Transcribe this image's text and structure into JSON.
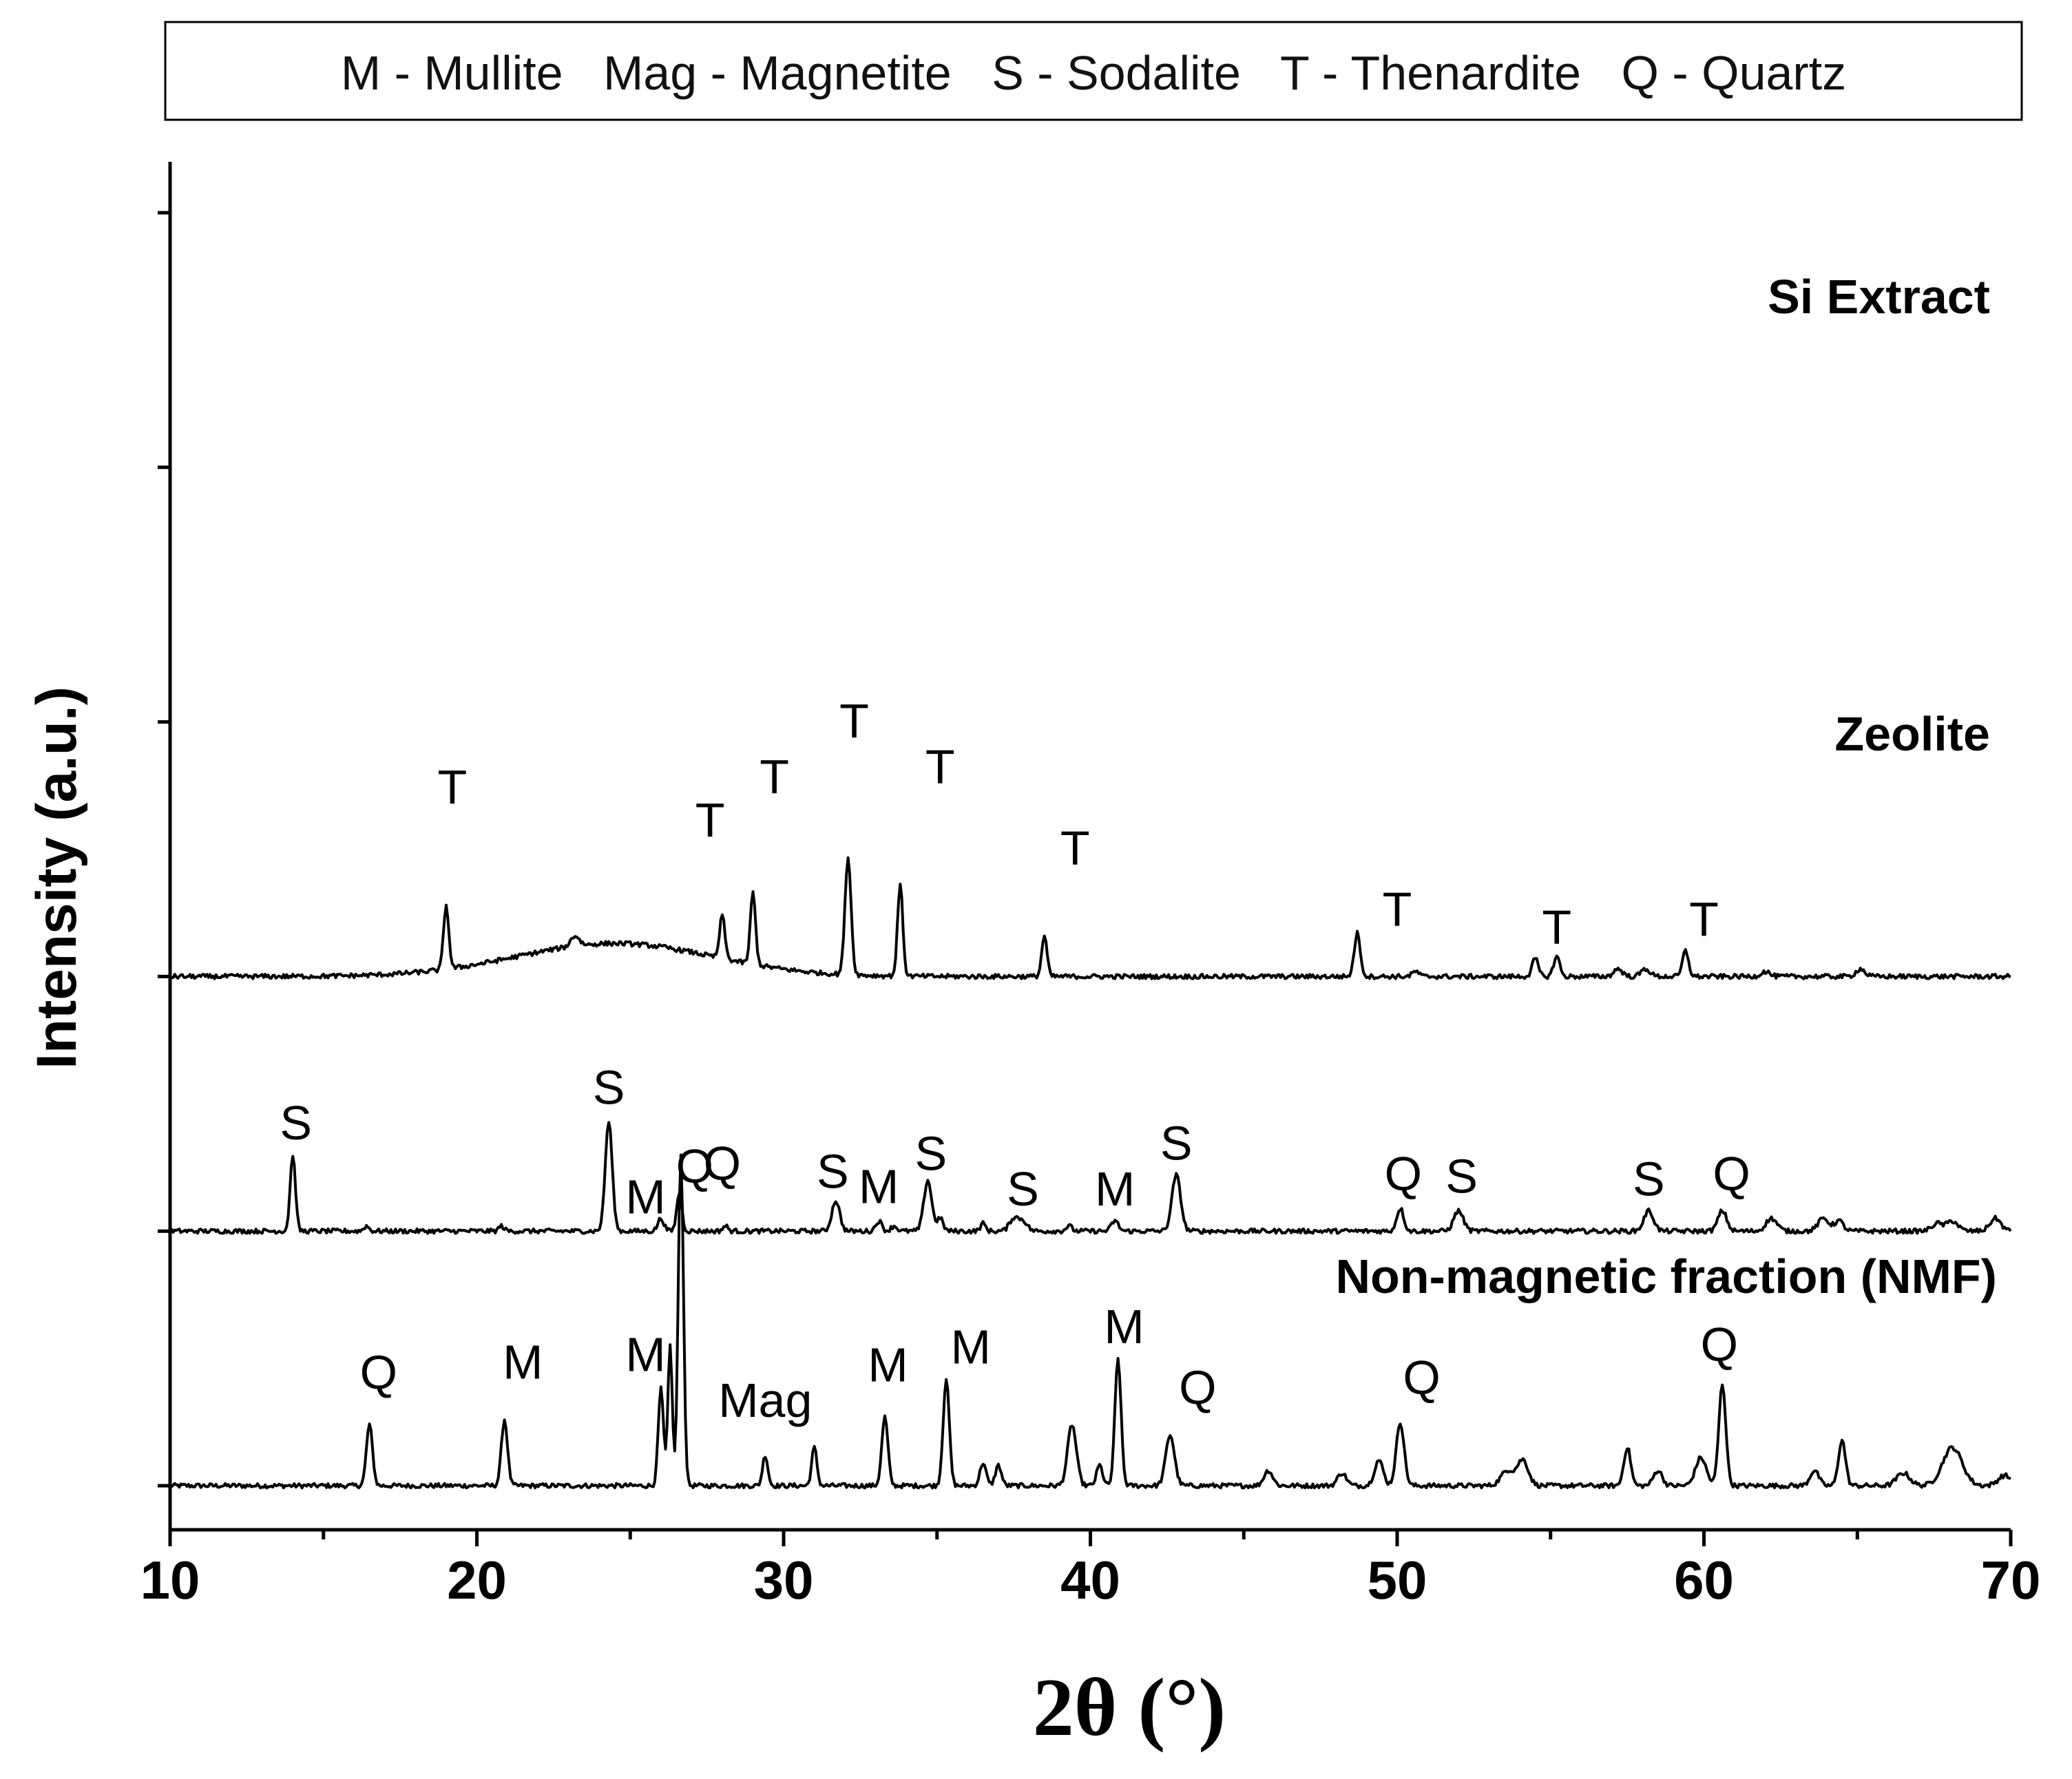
{
  "chart_data": {
    "type": "line",
    "title": "",
    "xlabel": "2θ (°)",
    "ylabel": "Intensity (a.u.)",
    "xlim": [
      10,
      70
    ],
    "ylim": [
      0,
      5.2
    ],
    "x_ticks": [
      10,
      20,
      30,
      40,
      50,
      60,
      70
    ],
    "legend": "M - Mullite   Mag - Magnetite   S - Sodalite   T - Thenardite   Q - Quartz",
    "series": [
      {
        "name": "Non-magnetic fraction (NMF)",
        "baseline": 0.0,
        "peaks": [
          [
            16.5,
            0.24,
            0.14
          ],
          [
            20.9,
            0.26,
            0.14
          ],
          [
            26.0,
            0.38,
            0.12
          ],
          [
            26.3,
            0.55,
            0.1
          ],
          [
            26.65,
            1.3,
            0.12
          ],
          [
            29.4,
            0.12,
            0.12
          ],
          [
            31.0,
            0.15,
            0.12
          ],
          [
            33.3,
            0.27,
            0.14
          ],
          [
            35.3,
            0.42,
            0.14
          ],
          [
            36.5,
            0.09,
            0.14
          ],
          [
            37.0,
            0.08,
            0.14
          ],
          [
            39.4,
            0.24,
            0.2
          ],
          [
            40.3,
            0.08,
            0.14
          ],
          [
            40.9,
            0.5,
            0.14
          ],
          [
            42.6,
            0.2,
            0.2
          ],
          [
            45.8,
            0.06,
            0.2
          ],
          [
            48.2,
            0.05,
            0.2
          ],
          [
            49.4,
            0.1,
            0.2
          ],
          [
            50.1,
            0.25,
            0.18
          ],
          [
            53.6,
            0.06,
            0.3
          ],
          [
            54.1,
            0.1,
            0.25
          ],
          [
            57.5,
            0.15,
            0.16
          ],
          [
            58.5,
            0.06,
            0.2
          ],
          [
            59.9,
            0.11,
            0.25
          ],
          [
            60.6,
            0.4,
            0.16
          ],
          [
            63.6,
            0.06,
            0.2
          ],
          [
            64.5,
            0.18,
            0.16
          ],
          [
            66.5,
            0.05,
            0.3
          ],
          [
            68.1,
            0.15,
            0.45
          ],
          [
            69.8,
            0.04,
            0.3
          ]
        ],
        "peak_labels": [
          {
            "text": "Q",
            "x": 16.8,
            "y": 0.38
          },
          {
            "text": "M",
            "x": 21.5,
            "y": 0.42
          },
          {
            "text": "M",
            "x": 25.5,
            "y": 0.45
          },
          {
            "text": "Q",
            "x": 28.0,
            "y": 1.2
          },
          {
            "text": "Mag",
            "x": 29.4,
            "y": 0.27
          },
          {
            "text": "M",
            "x": 33.4,
            "y": 0.41
          },
          {
            "text": "M",
            "x": 36.1,
            "y": 0.48
          },
          {
            "text": "M",
            "x": 41.1,
            "y": 0.56
          },
          {
            "text": "Q",
            "x": 43.5,
            "y": 0.32
          },
          {
            "text": "Q",
            "x": 50.8,
            "y": 0.36
          },
          {
            "text": "Q",
            "x": 60.5,
            "y": 0.49
          }
        ]
      },
      {
        "name": "Zeolite",
        "baseline": 1.0,
        "peaks": [
          [
            14.0,
            0.3,
            0.12
          ],
          [
            16.4,
            0.02,
            0.12
          ],
          [
            20.8,
            0.02,
            0.12
          ],
          [
            24.3,
            0.43,
            0.16
          ],
          [
            26.0,
            0.05,
            0.14
          ],
          [
            26.6,
            0.15,
            0.12
          ],
          [
            28.1,
            0.02,
            0.12
          ],
          [
            31.7,
            0.12,
            0.18
          ],
          [
            33.1,
            0.04,
            0.14
          ],
          [
            33.6,
            0.02,
            0.14
          ],
          [
            34.7,
            0.2,
            0.18
          ],
          [
            35.1,
            0.05,
            0.14
          ],
          [
            36.5,
            0.03,
            0.12
          ],
          [
            37.5,
            0.05,
            0.2
          ],
          [
            37.8,
            0.04,
            0.2
          ],
          [
            39.3,
            0.02,
            0.14
          ],
          [
            40.8,
            0.04,
            0.16
          ],
          [
            42.8,
            0.22,
            0.2
          ],
          [
            50.1,
            0.09,
            0.16
          ],
          [
            52.0,
            0.08,
            0.22
          ],
          [
            58.2,
            0.08,
            0.22
          ],
          [
            60.6,
            0.08,
            0.2
          ],
          [
            62.2,
            0.05,
            0.25
          ],
          [
            63.9,
            0.05,
            0.25
          ],
          [
            64.4,
            0.04,
            0.2
          ],
          [
            67.6,
            0.03,
            0.25
          ],
          [
            68.1,
            0.04,
            0.25
          ],
          [
            69.5,
            0.05,
            0.25
          ]
        ],
        "peak_labels": [
          {
            "text": "S",
            "x": 14.1,
            "y": 1.36
          },
          {
            "text": "S",
            "x": 24.3,
            "y": 1.5
          },
          {
            "text": "M",
            "x": 25.5,
            "y": 1.07
          },
          {
            "text": "Q",
            "x": 27.1,
            "y": 1.19
          },
          {
            "text": "S",
            "x": 31.6,
            "y": 1.17
          },
          {
            "text": "M",
            "x": 33.1,
            "y": 1.11
          },
          {
            "text": "S",
            "x": 34.8,
            "y": 1.24
          },
          {
            "text": "S",
            "x": 37.8,
            "y": 1.1
          },
          {
            "text": "M",
            "x": 40.8,
            "y": 1.1
          },
          {
            "text": "S",
            "x": 42.8,
            "y": 1.28
          },
          {
            "text": "Q",
            "x": 50.2,
            "y": 1.16
          },
          {
            "text": "S",
            "x": 52.1,
            "y": 1.15
          },
          {
            "text": "S",
            "x": 58.2,
            "y": 1.14
          },
          {
            "text": "Q",
            "x": 60.9,
            "y": 1.16
          }
        ]
      },
      {
        "name": "Si Extract",
        "baseline": 2.0,
        "hump": [
          24.5,
          4.5,
          0.13
        ],
        "peaks": [
          [
            19.0,
            0.25,
            0.12
          ],
          [
            23.2,
            0.04,
            0.2
          ],
          [
            28.0,
            0.17,
            0.12
          ],
          [
            29.0,
            0.28,
            0.12
          ],
          [
            32.1,
            0.46,
            0.14
          ],
          [
            33.8,
            0.36,
            0.12
          ],
          [
            38.5,
            0.16,
            0.12
          ],
          [
            48.7,
            0.17,
            0.14
          ],
          [
            50.6,
            0.02,
            0.15
          ],
          [
            54.5,
            0.07,
            0.14
          ],
          [
            55.2,
            0.08,
            0.14
          ],
          [
            57.2,
            0.03,
            0.2
          ],
          [
            58.1,
            0.03,
            0.2
          ],
          [
            59.4,
            0.1,
            0.14
          ],
          [
            62.0,
            0.02,
            0.2
          ],
          [
            65.1,
            0.03,
            0.2
          ]
        ],
        "peak_labels": [
          {
            "text": "T",
            "x": 19.2,
            "y": 2.68
          },
          {
            "text": "T",
            "x": 27.6,
            "y": 2.55
          },
          {
            "text": "T",
            "x": 29.7,
            "y": 2.72
          },
          {
            "text": "T",
            "x": 32.3,
            "y": 2.94
          },
          {
            "text": "T",
            "x": 35.1,
            "y": 2.76
          },
          {
            "text": "T",
            "x": 39.5,
            "y": 2.44
          },
          {
            "text": "T",
            "x": 50.0,
            "y": 2.2
          },
          {
            "text": "T",
            "x": 55.2,
            "y": 2.13
          },
          {
            "text": "T",
            "x": 60.0,
            "y": 2.16
          }
        ]
      }
    ]
  }
}
